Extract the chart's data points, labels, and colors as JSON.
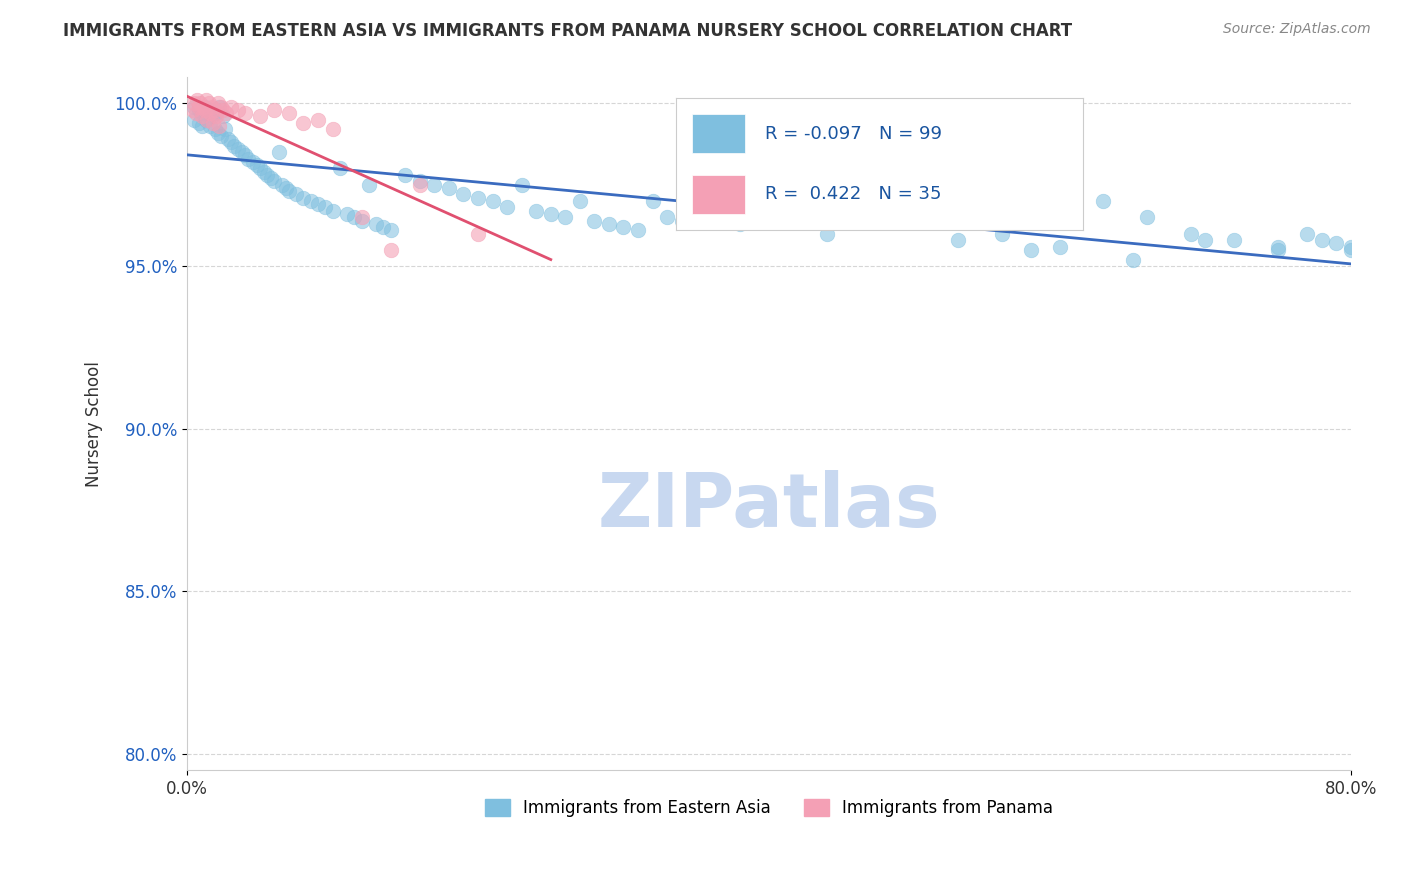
{
  "title": "IMMIGRANTS FROM EASTERN ASIA VS IMMIGRANTS FROM PANAMA NURSERY SCHOOL CORRELATION CHART",
  "source": "Source: ZipAtlas.com",
  "ylabel": "Nursery School",
  "xlabel": "",
  "legend_label_blue": "Immigrants from Eastern Asia",
  "legend_label_pink": "Immigrants from Panama",
  "R_blue": -0.097,
  "N_blue": 99,
  "R_pink": 0.422,
  "N_pink": 35,
  "blue_color": "#7fbfdf",
  "pink_color": "#f4a0b5",
  "trend_blue": "#3a6bbf",
  "trend_pink": "#e05070",
  "xlim": [
    0.0,
    0.8
  ],
  "ylim": [
    0.795,
    1.008
  ],
  "yticks": [
    0.8,
    0.85,
    0.9,
    0.95,
    1.0
  ],
  "ytick_labels": [
    "80.0%",
    "85.0%",
    "90.0%",
    "95.0%",
    "100.0%"
  ],
  "watermark": "ZIPatlas",
  "watermark_color": "#c8d8f0",
  "background_color": "#ffffff",
  "blue_x": [
    0.005,
    0.008,
    0.01,
    0.012,
    0.015,
    0.017,
    0.018,
    0.02,
    0.022,
    0.025,
    0.005,
    0.008,
    0.01,
    0.013,
    0.016,
    0.019,
    0.021,
    0.023,
    0.026,
    0.028,
    0.03,
    0.032,
    0.035,
    0.038,
    0.04,
    0.042,
    0.045,
    0.048,
    0.05,
    0.053,
    0.055,
    0.058,
    0.06,
    0.063,
    0.065,
    0.068,
    0.07,
    0.075,
    0.08,
    0.085,
    0.09,
    0.095,
    0.1,
    0.105,
    0.11,
    0.115,
    0.12,
    0.125,
    0.13,
    0.135,
    0.14,
    0.15,
    0.16,
    0.17,
    0.18,
    0.19,
    0.2,
    0.21,
    0.22,
    0.23,
    0.24,
    0.25,
    0.26,
    0.27,
    0.28,
    0.29,
    0.3,
    0.31,
    0.32,
    0.33,
    0.34,
    0.35,
    0.36,
    0.37,
    0.38,
    0.39,
    0.4,
    0.42,
    0.44,
    0.46,
    0.48,
    0.5,
    0.53,
    0.56,
    0.58,
    0.6,
    0.63,
    0.66,
    0.69,
    0.72,
    0.75,
    0.77,
    0.78,
    0.79,
    0.8,
    0.65,
    0.7,
    0.75,
    0.8
  ],
  "blue_y": [
    0.999,
    0.998,
    0.997,
    0.999,
    0.998,
    0.996,
    0.998,
    0.997,
    0.999,
    0.996,
    0.995,
    0.994,
    0.993,
    0.995,
    0.993,
    0.992,
    0.991,
    0.99,
    0.992,
    0.989,
    0.988,
    0.987,
    0.986,
    0.985,
    0.984,
    0.983,
    0.982,
    0.981,
    0.98,
    0.979,
    0.978,
    0.977,
    0.976,
    0.985,
    0.975,
    0.974,
    0.973,
    0.972,
    0.971,
    0.97,
    0.969,
    0.968,
    0.967,
    0.98,
    0.966,
    0.965,
    0.964,
    0.975,
    0.963,
    0.962,
    0.961,
    0.978,
    0.976,
    0.975,
    0.974,
    0.972,
    0.971,
    0.97,
    0.968,
    0.975,
    0.967,
    0.966,
    0.965,
    0.97,
    0.964,
    0.963,
    0.962,
    0.961,
    0.97,
    0.965,
    0.964,
    0.968,
    0.966,
    0.964,
    0.963,
    0.972,
    0.971,
    0.965,
    0.96,
    0.975,
    0.97,
    0.968,
    0.958,
    0.96,
    0.955,
    0.956,
    0.97,
    0.965,
    0.96,
    0.958,
    0.955,
    0.96,
    0.958,
    0.957,
    0.956,
    0.952,
    0.958,
    0.956,
    0.955
  ],
  "pink_x": [
    0.004,
    0.006,
    0.008,
    0.01,
    0.012,
    0.014,
    0.016,
    0.018,
    0.02,
    0.022,
    0.005,
    0.007,
    0.009,
    0.011,
    0.013,
    0.015,
    0.017,
    0.019,
    0.021,
    0.023,
    0.025,
    0.027,
    0.03,
    0.035,
    0.04,
    0.05,
    0.06,
    0.07,
    0.08,
    0.09,
    0.1,
    0.12,
    0.14,
    0.16,
    0.2
  ],
  "pink_y": [
    0.998,
    0.997,
    0.999,
    0.996,
    0.998,
    0.995,
    0.997,
    0.994,
    0.996,
    0.993,
    1.0,
    1.001,
    1.0,
    0.999,
    1.001,
    1.0,
    0.999,
    0.998,
    1.0,
    0.999,
    0.998,
    0.997,
    0.999,
    0.998,
    0.997,
    0.996,
    0.998,
    0.997,
    0.994,
    0.995,
    0.992,
    0.965,
    0.955,
    0.975,
    0.96
  ]
}
